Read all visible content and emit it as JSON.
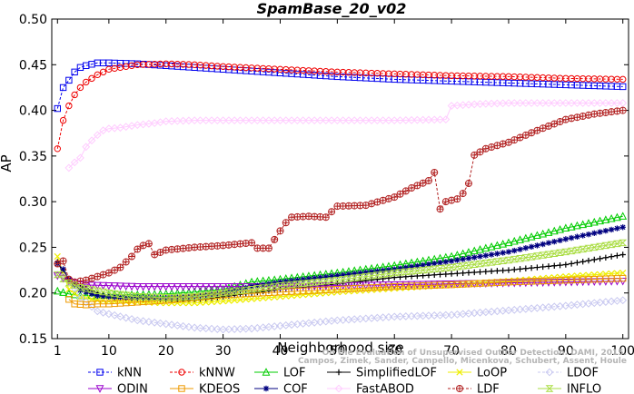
{
  "chart_data": {
    "type": "line",
    "title": "SpamBase_20_v02",
    "xlabel": "Neighborhood size",
    "ylabel": "AP",
    "xlim": [
      0,
      101
    ],
    "ylim": [
      0.15,
      0.5
    ],
    "xticks": [
      1,
      10,
      20,
      30,
      40,
      50,
      60,
      70,
      80,
      90,
      100
    ],
    "yticks": [
      "0.15",
      "0.20",
      "0.25",
      "0.30",
      "0.35",
      "0.40",
      "0.45",
      "0.50"
    ],
    "grid": false,
    "legend_position": "bottom",
    "watermark": "Campos, Zimek, Sander, Campello, Micenkova, Schubert, Assent, Houle\nOn the Evaluation of Unsupervised Outlier Detection. DAMI, 2015.",
    "series": [
      {
        "name": "kNN",
        "color": "#0000ee",
        "marker": "square",
        "dashed": true,
        "points": [
          [
            1,
            0.402
          ],
          [
            2,
            0.425
          ],
          [
            3,
            0.433
          ],
          [
            4,
            0.442
          ],
          [
            5,
            0.447
          ],
          [
            6,
            0.449
          ],
          [
            8,
            0.452
          ],
          [
            10,
            0.452
          ],
          [
            15,
            0.451
          ],
          [
            20,
            0.449
          ],
          [
            25,
            0.447
          ],
          [
            30,
            0.445
          ],
          [
            40,
            0.441
          ],
          [
            50,
            0.437
          ],
          [
            60,
            0.434
          ],
          [
            70,
            0.432
          ],
          [
            80,
            0.43
          ],
          [
            90,
            0.428
          ],
          [
            100,
            0.426
          ]
        ]
      },
      {
        "name": "kNNW",
        "color": "#ee0000",
        "marker": "circle",
        "dashed": true,
        "points": [
          [
            1,
            0.358
          ],
          [
            2,
            0.389
          ],
          [
            3,
            0.405
          ],
          [
            4,
            0.417
          ],
          [
            5,
            0.425
          ],
          [
            6,
            0.431
          ],
          [
            8,
            0.439
          ],
          [
            10,
            0.445
          ],
          [
            15,
            0.45
          ],
          [
            20,
            0.451
          ],
          [
            25,
            0.45
          ],
          [
            30,
            0.448
          ],
          [
            40,
            0.445
          ],
          [
            50,
            0.442
          ],
          [
            60,
            0.44
          ],
          [
            70,
            0.438
          ],
          [
            80,
            0.437
          ],
          [
            90,
            0.435
          ],
          [
            100,
            0.434
          ]
        ]
      },
      {
        "name": "LOF",
        "color": "#00cc00",
        "marker": "triangle-up",
        "dashed": false,
        "points": [
          [
            1,
            0.202
          ],
          [
            3,
            0.199
          ],
          [
            5,
            0.197
          ],
          [
            8,
            0.197
          ],
          [
            10,
            0.198
          ],
          [
            15,
            0.198
          ],
          [
            20,
            0.199
          ],
          [
            25,
            0.201
          ],
          [
            30,
            0.204
          ],
          [
            35,
            0.212
          ],
          [
            40,
            0.215
          ],
          [
            50,
            0.222
          ],
          [
            60,
            0.23
          ],
          [
            70,
            0.24
          ],
          [
            80,
            0.255
          ],
          [
            90,
            0.271
          ],
          [
            100,
            0.284
          ]
        ]
      },
      {
        "name": "SimplifiedLOF",
        "color": "#000000",
        "marker": "plus",
        "dashed": false,
        "points": [
          [
            1,
            0.234
          ],
          [
            2,
            0.222
          ],
          [
            3,
            0.214
          ],
          [
            5,
            0.207
          ],
          [
            8,
            0.2
          ],
          [
            10,
            0.196
          ],
          [
            15,
            0.193
          ],
          [
            20,
            0.192
          ],
          [
            25,
            0.192
          ],
          [
            30,
            0.196
          ],
          [
            35,
            0.2
          ],
          [
            40,
            0.204
          ],
          [
            50,
            0.21
          ],
          [
            60,
            0.217
          ],
          [
            70,
            0.221
          ],
          [
            80,
            0.225
          ],
          [
            90,
            0.231
          ],
          [
            100,
            0.242
          ]
        ]
      },
      {
        "name": "LoOP",
        "color": "#eeee00",
        "marker": "x",
        "dashed": false,
        "points": [
          [
            1,
            0.24
          ],
          [
            2,
            0.222
          ],
          [
            3,
            0.204
          ],
          [
            5,
            0.195
          ],
          [
            8,
            0.192
          ],
          [
            10,
            0.191
          ],
          [
            15,
            0.19
          ],
          [
            20,
            0.189
          ],
          [
            25,
            0.189
          ],
          [
            30,
            0.191
          ],
          [
            40,
            0.196
          ],
          [
            50,
            0.201
          ],
          [
            60,
            0.205
          ],
          [
            70,
            0.209
          ],
          [
            80,
            0.213
          ],
          [
            90,
            0.218
          ],
          [
            100,
            0.222
          ]
        ]
      },
      {
        "name": "LDOF",
        "color": "#c8c8f0",
        "marker": "diamond",
        "dashed": true,
        "points": [
          [
            1,
            0.22
          ],
          [
            3,
            0.215
          ],
          [
            5,
            0.195
          ],
          [
            8,
            0.18
          ],
          [
            10,
            0.177
          ],
          [
            15,
            0.17
          ],
          [
            20,
            0.166
          ],
          [
            25,
            0.162
          ],
          [
            30,
            0.16
          ],
          [
            35,
            0.161
          ],
          [
            40,
            0.164
          ],
          [
            50,
            0.17
          ],
          [
            60,
            0.174
          ],
          [
            70,
            0.176
          ],
          [
            80,
            0.181
          ],
          [
            90,
            0.186
          ],
          [
            100,
            0.192
          ]
        ]
      },
      {
        "name": "ODIN",
        "color": "#9900cc",
        "marker": "triangle-down",
        "dashed": false,
        "points": [
          [
            1,
            0.219
          ],
          [
            3,
            0.213
          ],
          [
            5,
            0.209
          ],
          [
            10,
            0.208
          ],
          [
            15,
            0.207
          ],
          [
            20,
            0.207
          ],
          [
            25,
            0.207
          ],
          [
            30,
            0.207
          ],
          [
            40,
            0.207
          ],
          [
            50,
            0.208
          ],
          [
            60,
            0.209
          ],
          [
            70,
            0.21
          ],
          [
            80,
            0.211
          ],
          [
            90,
            0.212
          ],
          [
            100,
            0.213
          ]
        ]
      },
      {
        "name": "KDEOS",
        "color": "#ee9900",
        "marker": "square",
        "dashed": false,
        "points": [
          [
            3,
            0.193
          ],
          [
            4,
            0.188
          ],
          [
            6,
            0.187
          ],
          [
            8,
            0.188
          ],
          [
            10,
            0.188
          ],
          [
            15,
            0.19
          ],
          [
            20,
            0.192
          ],
          [
            25,
            0.195
          ],
          [
            30,
            0.198
          ],
          [
            40,
            0.201
          ],
          [
            50,
            0.204
          ],
          [
            60,
            0.207
          ],
          [
            70,
            0.209
          ],
          [
            80,
            0.212
          ],
          [
            90,
            0.214
          ],
          [
            100,
            0.216
          ]
        ]
      },
      {
        "name": "COF",
        "color": "#000080",
        "marker": "star",
        "dashed": false,
        "points": [
          [
            1,
            0.232
          ],
          [
            2,
            0.226
          ],
          [
            3,
            0.215
          ],
          [
            5,
            0.203
          ],
          [
            8,
            0.197
          ],
          [
            10,
            0.196
          ],
          [
            15,
            0.195
          ],
          [
            20,
            0.195
          ],
          [
            25,
            0.196
          ],
          [
            30,
            0.2
          ],
          [
            35,
            0.207
          ],
          [
            40,
            0.212
          ],
          [
            50,
            0.219
          ],
          [
            60,
            0.226
          ],
          [
            70,
            0.235
          ],
          [
            80,
            0.245
          ],
          [
            90,
            0.259
          ],
          [
            100,
            0.272
          ]
        ]
      },
      {
        "name": "FastABOD",
        "color": "#ffccff",
        "marker": "diamond",
        "dashed": false,
        "points": [
          [
            3,
            0.337
          ],
          [
            4,
            0.343
          ],
          [
            5,
            0.348
          ],
          [
            6,
            0.36
          ],
          [
            7,
            0.367
          ],
          [
            8,
            0.373
          ],
          [
            9,
            0.378
          ],
          [
            10,
            0.38
          ],
          [
            12,
            0.381
          ],
          [
            15,
            0.384
          ],
          [
            18,
            0.386
          ],
          [
            20,
            0.388
          ],
          [
            25,
            0.389
          ],
          [
            30,
            0.389
          ],
          [
            40,
            0.389
          ],
          [
            50,
            0.389
          ],
          [
            60,
            0.389
          ],
          [
            69,
            0.39
          ],
          [
            70,
            0.405
          ],
          [
            75,
            0.407
          ],
          [
            80,
            0.408
          ],
          [
            90,
            0.408
          ],
          [
            100,
            0.408
          ]
        ]
      },
      {
        "name": "LDF",
        "color": "#b22222",
        "marker": "circle-plus",
        "dashed": true,
        "points": [
          [
            1,
            0.232
          ],
          [
            2,
            0.235
          ],
          [
            3,
            0.215
          ],
          [
            4,
            0.212
          ],
          [
            6,
            0.214
          ],
          [
            8,
            0.218
          ],
          [
            10,
            0.222
          ],
          [
            12,
            0.228
          ],
          [
            14,
            0.24
          ],
          [
            15,
            0.248
          ],
          [
            16,
            0.252
          ],
          [
            17,
            0.254
          ],
          [
            18,
            0.242
          ],
          [
            20,
            0.247
          ],
          [
            25,
            0.25
          ],
          [
            30,
            0.252
          ],
          [
            35,
            0.255
          ],
          [
            36,
            0.249
          ],
          [
            38,
            0.249
          ],
          [
            40,
            0.268
          ],
          [
            41,
            0.277
          ],
          [
            42,
            0.283
          ],
          [
            45,
            0.284
          ],
          [
            48,
            0.283
          ],
          [
            50,
            0.295
          ],
          [
            55,
            0.296
          ],
          [
            60,
            0.305
          ],
          [
            63,
            0.315
          ],
          [
            66,
            0.323
          ],
          [
            67,
            0.332
          ],
          [
            68,
            0.292
          ],
          [
            69,
            0.3
          ],
          [
            71,
            0.303
          ],
          [
            72,
            0.309
          ],
          [
            73,
            0.32
          ],
          [
            74,
            0.351
          ],
          [
            76,
            0.358
          ],
          [
            80,
            0.365
          ],
          [
            85,
            0.378
          ],
          [
            90,
            0.39
          ],
          [
            95,
            0.396
          ],
          [
            100,
            0.4
          ]
        ]
      },
      {
        "name": "INFLO",
        "color": "#aadd44",
        "marker": "hourglass",
        "dashed": false,
        "points": [
          [
            1,
            0.22
          ],
          [
            3,
            0.211
          ],
          [
            5,
            0.206
          ],
          [
            10,
            0.2
          ],
          [
            15,
            0.196
          ],
          [
            20,
            0.195
          ],
          [
            25,
            0.196
          ],
          [
            30,
            0.2
          ],
          [
            35,
            0.204
          ],
          [
            40,
            0.208
          ],
          [
            50,
            0.214
          ],
          [
            60,
            0.222
          ],
          [
            70,
            0.228
          ],
          [
            80,
            0.236
          ],
          [
            90,
            0.245
          ],
          [
            100,
            0.255
          ]
        ]
      }
    ]
  }
}
